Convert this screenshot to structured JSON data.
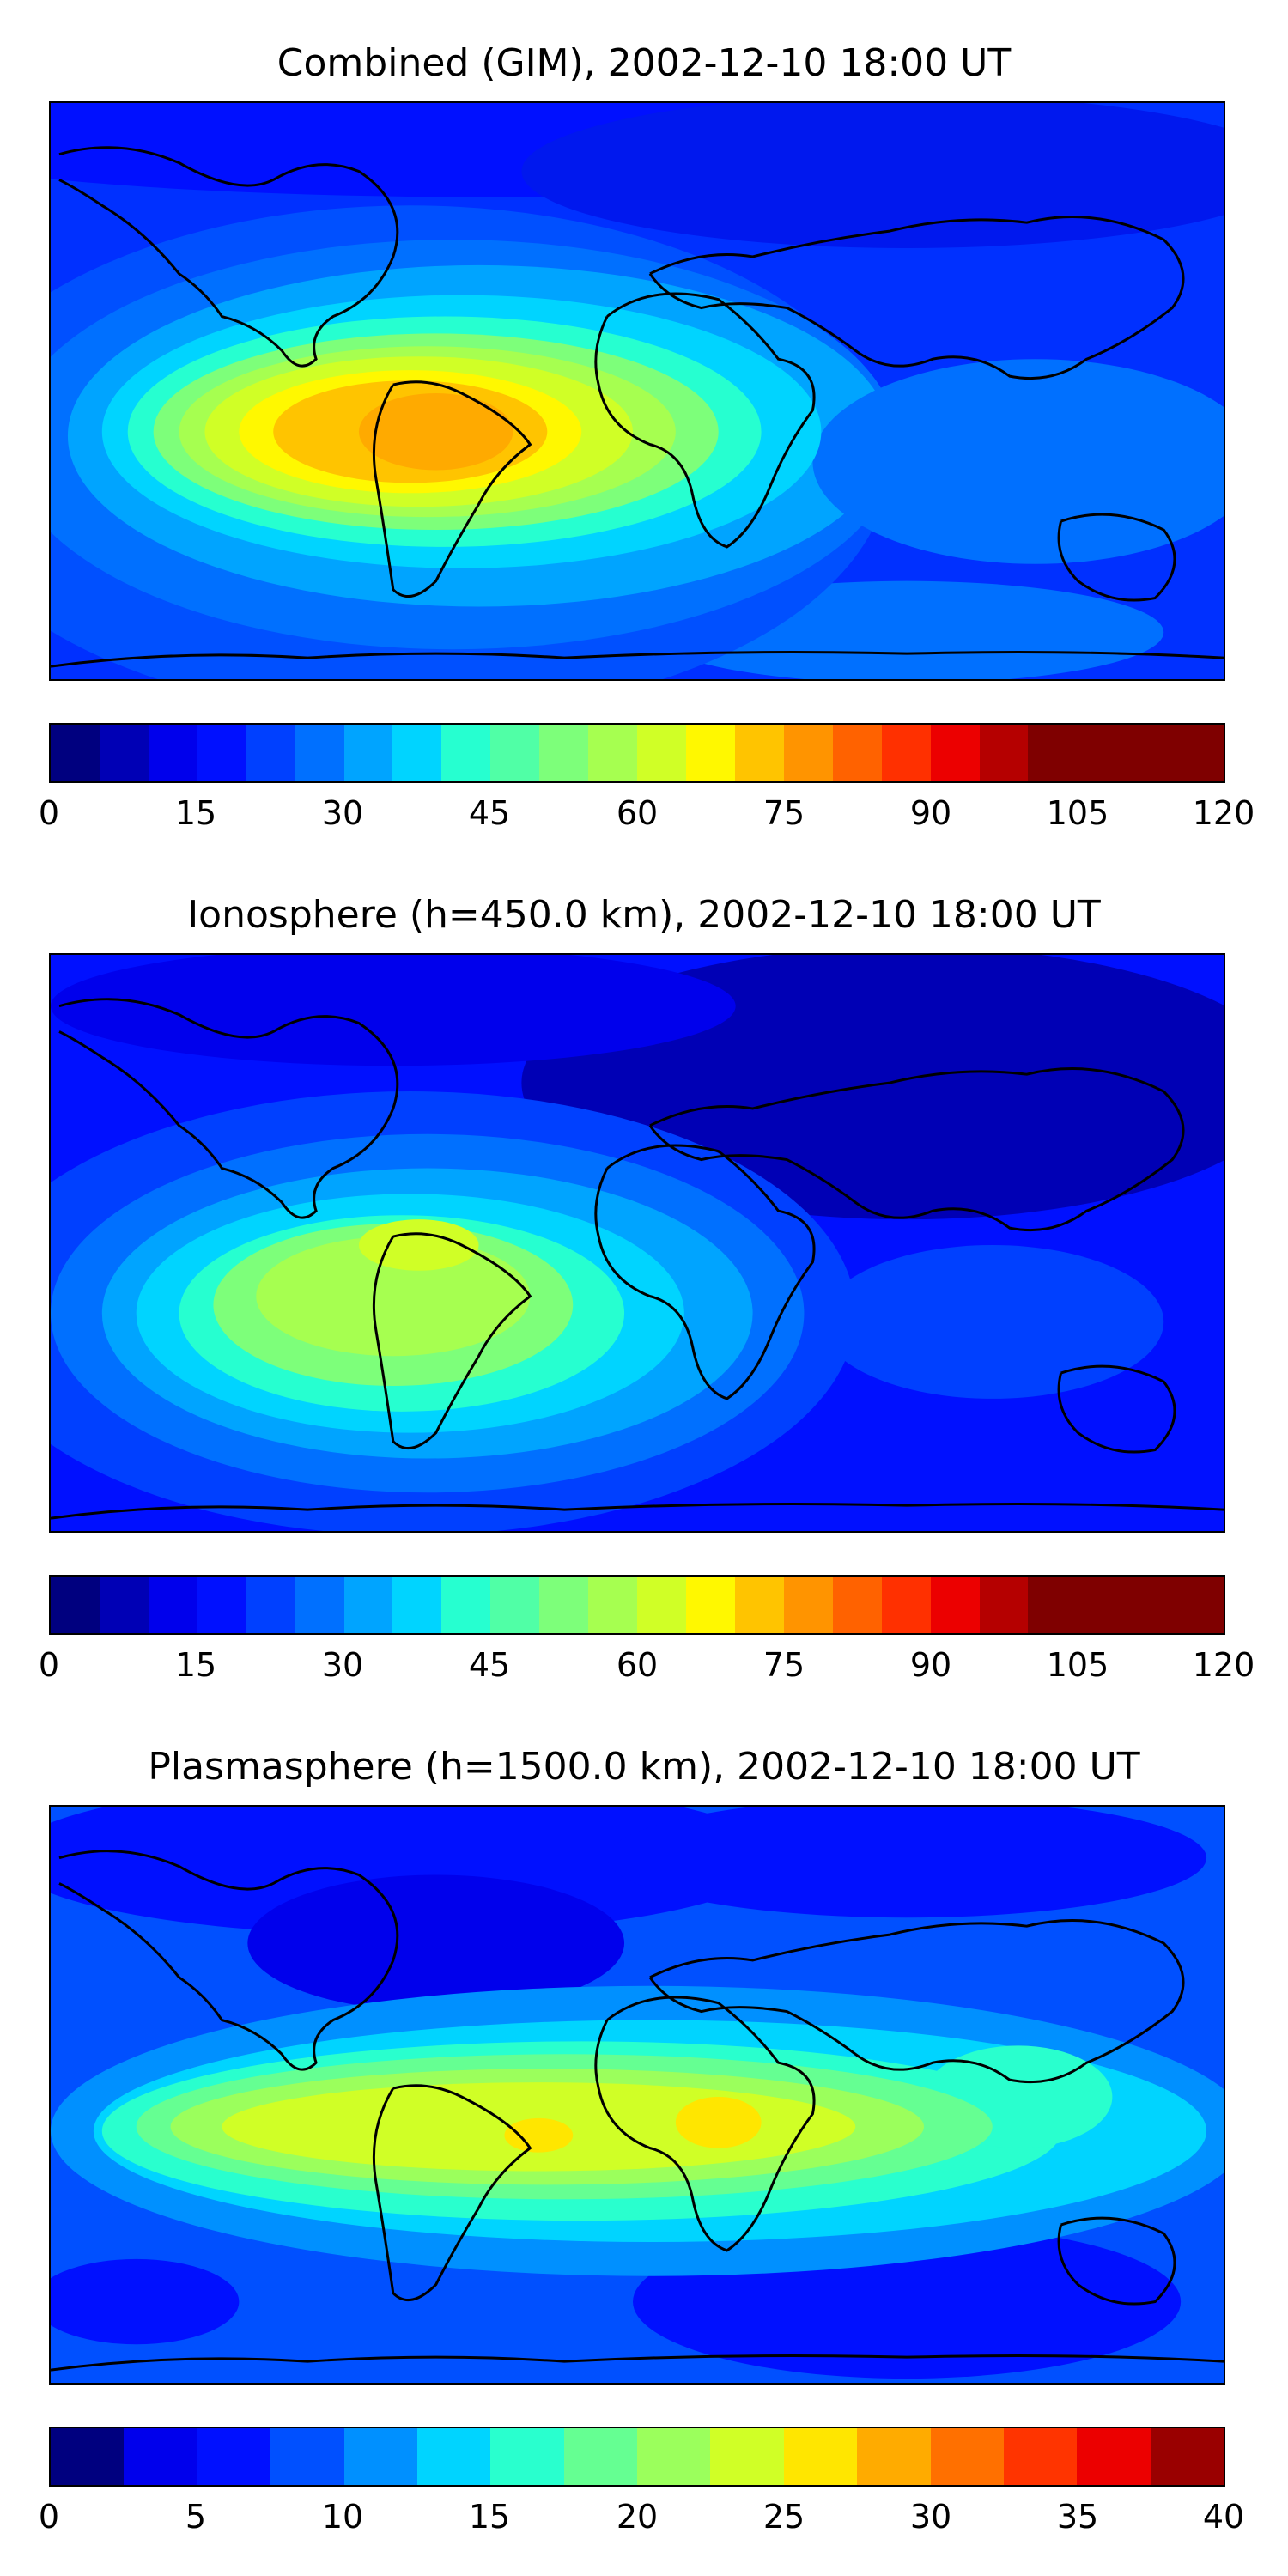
{
  "panels": [
    {
      "title": "Combined (GIM), 2002-12-10 18:00 UT",
      "colorbar": {
        "min": 0,
        "max": 120,
        "ticks": [
          "0",
          "15",
          "30",
          "45",
          "60",
          "75",
          "90",
          "105",
          "120"
        ]
      },
      "pattern": "combined"
    },
    {
      "title": "Ionosphere  (h=450.0 km), 2002-12-10 18:00 UT",
      "colorbar": {
        "min": 0,
        "max": 120,
        "ticks": [
          "0",
          "15",
          "30",
          "45",
          "60",
          "75",
          "90",
          "105",
          "120"
        ]
      },
      "pattern": "ionosphere"
    },
    {
      "title": "Plasmasphere (h=1500.0 km), 2002-12-10 18:00 UT",
      "colorbar": {
        "min": 0,
        "max": 40,
        "ticks": [
          "0",
          "5",
          "10",
          "15",
          "20",
          "25",
          "30",
          "35",
          "40"
        ]
      },
      "pattern": "plasmasphere"
    }
  ],
  "colormap": [
    "#00007f",
    "#0000b5",
    "#0000ec",
    "#0010ff",
    "#0040ff",
    "#0070ff",
    "#00a4ff",
    "#00d4ff",
    "#26ffd0",
    "#50ffa6",
    "#7dff7a",
    "#a6ff50",
    "#d0ff26",
    "#fff800",
    "#ffc400",
    "#ff9400",
    "#ff6200",
    "#ff3000",
    "#ec0000",
    "#b50000",
    "#7f0000"
  ],
  "colormap_plasmasphere": [
    "#00007f",
    "#0000ec",
    "#0010ff",
    "#0050ff",
    "#0090ff",
    "#00d4ff",
    "#29ffce",
    "#65ff92",
    "#9bff5c",
    "#d0ff26",
    "#ffe600",
    "#ffab00",
    "#ff7000",
    "#ff3400",
    "#ec0000",
    "#9a0000"
  ]
}
